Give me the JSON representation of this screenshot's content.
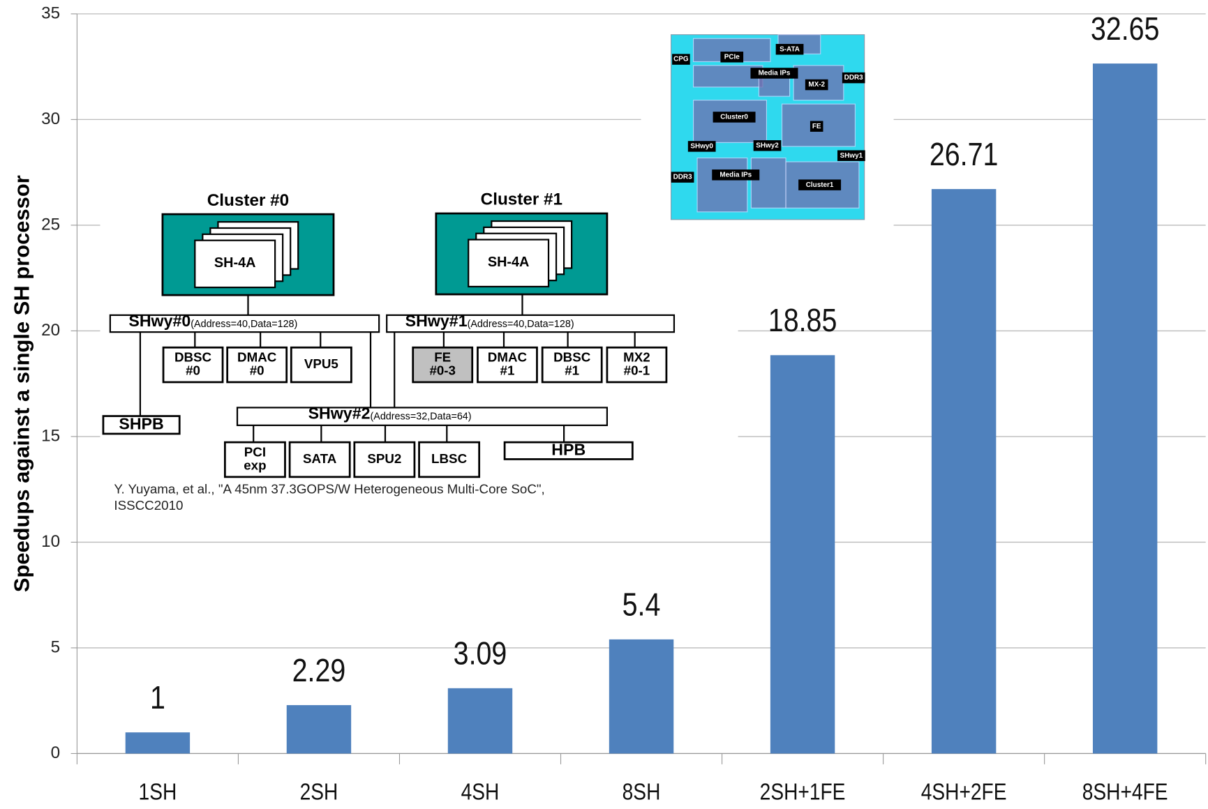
{
  "chart_data": {
    "type": "bar",
    "y_label": "Speedups against a single SH processor",
    "categories": [
      "1SH",
      "2SH",
      "4SH",
      "8SH",
      "2SH+1FE",
      "4SH+2FE",
      "8SH+4FE"
    ],
    "values": [
      1,
      2.29,
      3.09,
      5.4,
      18.85,
      26.71,
      32.65
    ],
    "color": "#4f81bd",
    "ylim": [
      0,
      35
    ],
    "yticks": [
      0,
      5,
      10,
      15,
      20,
      25,
      30,
      35
    ],
    "grid": true
  },
  "diagram": {
    "clusters": [
      {
        "title": "Cluster #0",
        "core": "SH-4A"
      },
      {
        "title": "Cluster #1",
        "core": "SH-4A"
      }
    ],
    "buses": [
      {
        "name": "SHwy#0",
        "spec": "(Address=40,Data=128)"
      },
      {
        "name": "SHwy#1",
        "spec": "(Address=40,Data=128)"
      },
      {
        "name": "SHwy#2",
        "spec": "(Address=32,Data=64)"
      }
    ],
    "modules": [
      [
        "DBSC",
        "#0"
      ],
      [
        "DMAC",
        "#0"
      ],
      [
        "VPU5"
      ],
      [
        "FE",
        "#0-3"
      ],
      [
        "DMAC",
        "#1"
      ],
      [
        "DBSC",
        "#1"
      ],
      [
        "MX2",
        "#0-1"
      ],
      [
        "SHPB"
      ],
      [
        "PCI",
        "exp"
      ],
      [
        "SATA"
      ],
      [
        "SPU2"
      ],
      [
        "LBSC"
      ],
      [
        "HPB"
      ]
    ],
    "citation": [
      "Y. Yuyama, et al., \"A 45nm 37.3GOPS/W Heterogeneous Multi-Core SoC\",",
      "ISSCC2010"
    ]
  },
  "die_photo": {
    "labels": [
      "CPG",
      "PCIe",
      "S-ATA",
      "Media IPs",
      "DDR3",
      "MX-2",
      "Cluster0",
      "FE",
      "SHwy0",
      "SHwy2",
      "SHwy1",
      "DDR3",
      "Media IPs",
      "Cluster1"
    ]
  }
}
